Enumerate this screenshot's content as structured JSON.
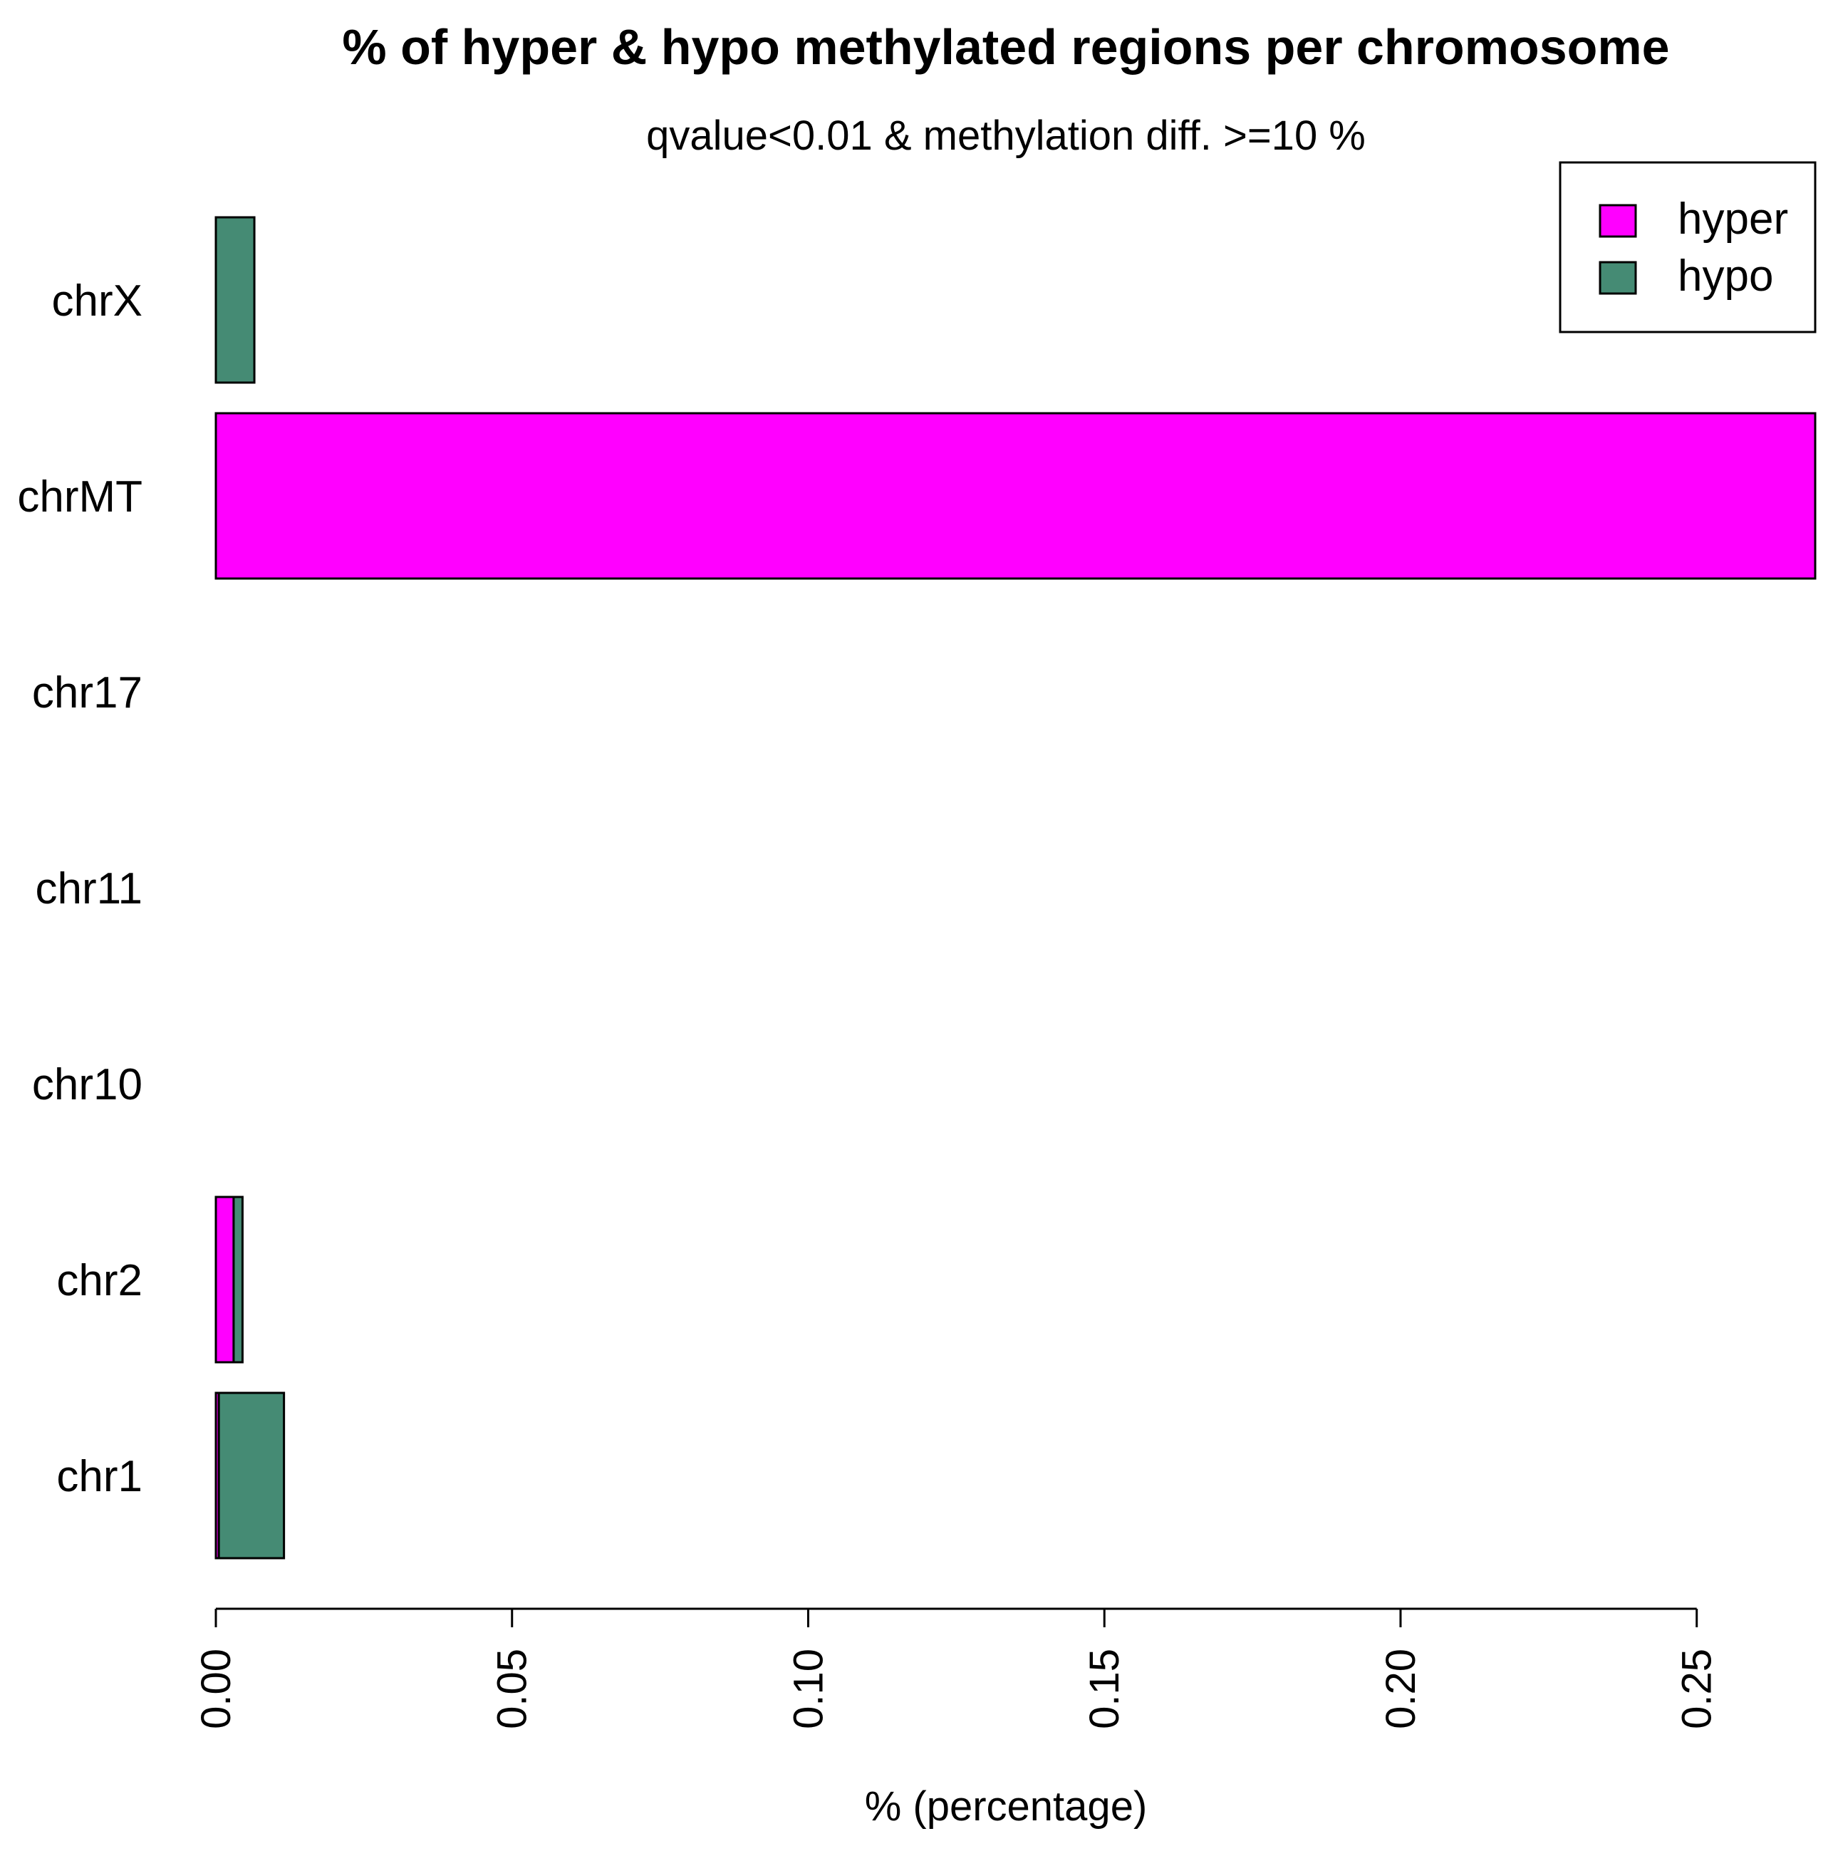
{
  "chart_data": {
    "type": "bar",
    "orientation": "horizontal",
    "stacked": true,
    "title": "% of hyper & hypo methylated regions per chromosome",
    "subtitle": "qvalue<0.01 & methylation diff. >=10 %",
    "xlabel": "% (percentage)",
    "ylabel": "",
    "xlim": [
      0,
      0.27
    ],
    "x_ticks": [
      0.0,
      0.05,
      0.1,
      0.15,
      0.2,
      0.25
    ],
    "x_tick_labels": [
      "0.00",
      "0.05",
      "0.10",
      "0.15",
      "0.20",
      "0.25"
    ],
    "tick_label_rotation": "vertical",
    "grid": false,
    "legend_position": "top-right",
    "categories": [
      "chr1",
      "chr2",
      "chr10",
      "chr11",
      "chr17",
      "chrMT",
      "chrX"
    ],
    "series": [
      {
        "name": "hyper",
        "color": "#ff00ff",
        "values": [
          0.0005,
          0.003,
          0,
          0,
          0,
          0.27,
          0
        ]
      },
      {
        "name": "hypo",
        "color": "#458b74",
        "values": [
          0.011,
          0.0015,
          0,
          0,
          0,
          0,
          0.0065
        ]
      }
    ],
    "legend": [
      {
        "label": "hyper",
        "color": "#ff00ff"
      },
      {
        "label": "hypo",
        "color": "#458b74"
      }
    ]
  }
}
